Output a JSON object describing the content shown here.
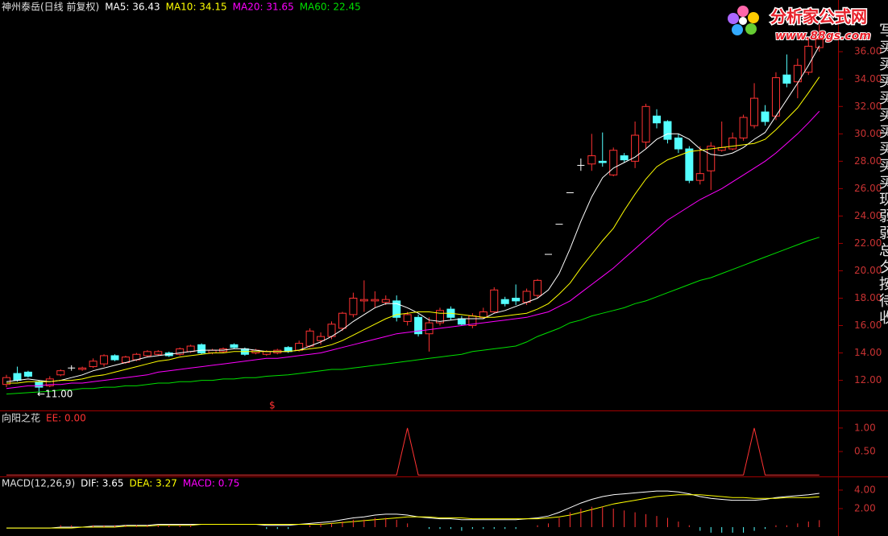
{
  "chart_data": [
    {
      "type": "candlestick",
      "title": "神州泰岳(日线 前复权)",
      "open": [
        11.7,
        12.5,
        12.6,
        11.9,
        11.6,
        12.4,
        12.9,
        12.8,
        13.0,
        13.2,
        13.8,
        13.3,
        13.5,
        13.8,
        13.9,
        14.0,
        13.9,
        14.1,
        14.6,
        14.0,
        14.1,
        14.6,
        14.3,
        14.0,
        13.9,
        14.0,
        14.4,
        14.2,
        14.5,
        14.9,
        15.2,
        15.8,
        16.8,
        17.8,
        17.8,
        17.7,
        17.8,
        16.3,
        16.6,
        15.4,
        16.2,
        17.2,
        16.5,
        16.0,
        16.6,
        17.0,
        17.9,
        18.0,
        17.7,
        18.2,
        21.2,
        23.4,
        25.7,
        27.7,
        27.8,
        28.0,
        27.0,
        28.4,
        28.0,
        29.4,
        31.3,
        30.9,
        29.7,
        28.9,
        26.6,
        27.3,
        28.8,
        28.9,
        29.7,
        30.6,
        31.6,
        31.3,
        34.3,
        33.8,
        34.5,
        36.3
      ],
      "high": [
        12.4,
        13.0,
        12.7,
        12.0,
        12.3,
        12.8,
        13.1,
        13.0,
        13.6,
        13.9,
        13.9,
        13.8,
        14.0,
        14.2,
        14.2,
        14.1,
        14.4,
        14.6,
        14.7,
        14.3,
        14.4,
        14.7,
        14.4,
        14.3,
        14.2,
        14.3,
        14.5,
        14.9,
        15.8,
        15.5,
        16.3,
        17.0,
        18.4,
        19.3,
        18.5,
        18.2,
        18.2,
        17.0,
        16.8,
        16.6,
        17.3,
        17.4,
        16.7,
        16.9,
        17.3,
        18.8,
        18.1,
        19.0,
        18.7,
        19.4,
        21.2,
        23.4,
        25.7,
        28.2,
        30.0,
        30.1,
        29.0,
        28.6,
        30.9,
        32.2,
        31.8,
        31.0,
        30.0,
        29.1,
        29.1,
        29.4,
        30.9,
        30.1,
        31.4,
        33.7,
        32.1,
        34.5,
        35.8,
        35.5,
        37.0,
        38.0
      ],
      "low": [
        11.5,
        11.9,
        12.2,
        11.0,
        11.5,
        12.3,
        12.7,
        12.7,
        12.9,
        13.0,
        13.4,
        13.2,
        13.4,
        13.7,
        13.8,
        13.7,
        13.8,
        14.0,
        13.9,
        13.9,
        14.0,
        14.3,
        13.8,
        13.9,
        13.8,
        13.9,
        14.0,
        14.1,
        14.4,
        14.6,
        15.0,
        15.6,
        16.6,
        17.0,
        17.3,
        17.5,
        16.3,
        16.0,
        15.2,
        14.1,
        16.0,
        16.4,
        16.0,
        15.8,
        16.5,
        16.9,
        17.4,
        17.5,
        17.5,
        18.0,
        21.2,
        23.4,
        25.7,
        27.3,
        27.3,
        27.6,
        26.9,
        27.9,
        27.5,
        28.9,
        30.4,
        29.3,
        28.6,
        26.4,
        26.3,
        25.9,
        28.7,
        28.8,
        29.5,
        30.4,
        30.6,
        31.0,
        33.4,
        32.6,
        34.3,
        36.0
      ],
      "close": [
        12.2,
        12.0,
        12.3,
        11.5,
        12.1,
        12.7,
        12.9,
        12.9,
        13.4,
        13.8,
        13.5,
        13.7,
        13.9,
        14.1,
        14.1,
        13.8,
        14.3,
        14.5,
        14.0,
        14.2,
        14.3,
        14.4,
        13.9,
        14.2,
        14.1,
        14.2,
        14.1,
        14.7,
        15.6,
        15.2,
        16.1,
        16.9,
        18.0,
        17.9,
        17.9,
        17.9,
        16.6,
        16.8,
        15.4,
        16.2,
        17.1,
        16.6,
        16.1,
        16.7,
        17.0,
        18.6,
        17.6,
        17.8,
        18.5,
        19.3,
        21.2,
        23.4,
        25.7,
        27.7,
        28.4,
        27.9,
        28.8,
        28.1,
        29.9,
        32.0,
        30.8,
        29.6,
        28.9,
        26.6,
        27.1,
        29.1,
        29.0,
        29.7,
        31.2,
        32.6,
        30.9,
        34.1,
        33.7,
        35.0,
        36.4,
        36.9
      ],
      "up_color": "#ff3232",
      "down_color": "#54ffff",
      "flat_color": "#ffffff",
      "series": [
        {
          "name": "MA5: 36.43",
          "color": "#ffffff",
          "values": [
            11.9,
            12.0,
            12.1,
            12.0,
            11.9,
            12.0,
            12.2,
            12.4,
            12.7,
            12.9,
            13.1,
            13.3,
            13.5,
            13.7,
            13.8,
            13.9,
            14.0,
            14.1,
            14.2,
            14.2,
            14.2,
            14.3,
            14.3,
            14.2,
            14.1,
            14.1,
            14.1,
            14.2,
            14.5,
            14.8,
            15.2,
            15.7,
            16.3,
            16.8,
            17.3,
            17.6,
            17.6,
            17.3,
            16.9,
            16.4,
            16.3,
            16.4,
            16.5,
            16.5,
            16.5,
            16.9,
            17.1,
            17.4,
            17.7,
            18.0,
            18.6,
            19.8,
            21.6,
            23.6,
            25.4,
            26.8,
            27.5,
            27.9,
            28.3,
            28.9,
            29.6,
            30.0,
            30.0,
            29.6,
            28.9,
            28.5,
            28.4,
            28.6,
            29.0,
            29.6,
            30.1,
            31.3,
            32.5,
            33.7,
            35.0,
            36.43
          ]
        },
        {
          "name": "MA10: 34.15",
          "color": "#ffff00",
          "values": [
            11.8,
            11.8,
            11.9,
            11.9,
            11.9,
            12.0,
            12.0,
            12.1,
            12.3,
            12.4,
            12.6,
            12.8,
            13.0,
            13.2,
            13.4,
            13.5,
            13.7,
            13.8,
            13.9,
            14.0,
            14.0,
            14.1,
            14.1,
            14.1,
            14.1,
            14.1,
            14.1,
            14.2,
            14.3,
            14.4,
            14.6,
            14.9,
            15.3,
            15.7,
            16.1,
            16.5,
            16.8,
            16.9,
            17.0,
            17.0,
            16.9,
            16.9,
            16.8,
            16.7,
            16.6,
            16.6,
            16.7,
            16.8,
            16.9,
            17.2,
            17.6,
            18.3,
            19.1,
            20.2,
            21.2,
            22.2,
            23.1,
            24.4,
            25.6,
            26.7,
            27.6,
            28.1,
            28.4,
            28.7,
            28.8,
            28.9,
            29.0,
            29.1,
            29.2,
            29.3,
            29.6,
            30.3,
            31.1,
            31.9,
            33.0,
            34.15
          ]
        },
        {
          "name": "MA20: 31.65",
          "color": "#ff00ff",
          "values": [
            11.4,
            11.5,
            11.6,
            11.6,
            11.7,
            11.7,
            11.8,
            11.8,
            11.9,
            12.0,
            12.1,
            12.2,
            12.3,
            12.4,
            12.6,
            12.7,
            12.8,
            12.9,
            13.0,
            13.1,
            13.2,
            13.3,
            13.4,
            13.5,
            13.6,
            13.6,
            13.7,
            13.8,
            13.9,
            14.0,
            14.2,
            14.4,
            14.6,
            14.8,
            15.0,
            15.2,
            15.4,
            15.5,
            15.6,
            15.7,
            15.8,
            15.9,
            16.0,
            16.1,
            16.2,
            16.3,
            16.4,
            16.5,
            16.6,
            16.8,
            17.0,
            17.4,
            17.8,
            18.4,
            19.0,
            19.6,
            20.2,
            20.9,
            21.6,
            22.3,
            23.0,
            23.7,
            24.2,
            24.7,
            25.2,
            25.6,
            26.0,
            26.5,
            27.0,
            27.5,
            28.0,
            28.6,
            29.3,
            30.0,
            30.8,
            31.65
          ]
        },
        {
          "name": "MA60: 22.45",
          "color": "#00e000",
          "values": [
            11.0,
            11.05,
            11.1,
            11.15,
            11.2,
            11.3,
            11.3,
            11.4,
            11.4,
            11.5,
            11.5,
            11.6,
            11.6,
            11.7,
            11.8,
            11.8,
            11.9,
            11.9,
            12.0,
            12.0,
            12.1,
            12.1,
            12.2,
            12.2,
            12.3,
            12.35,
            12.4,
            12.5,
            12.6,
            12.7,
            12.8,
            12.8,
            12.9,
            13.0,
            13.1,
            13.2,
            13.3,
            13.4,
            13.5,
            13.6,
            13.7,
            13.8,
            13.9,
            14.1,
            14.2,
            14.3,
            14.4,
            14.5,
            14.8,
            15.2,
            15.5,
            15.8,
            16.2,
            16.4,
            16.7,
            16.9,
            17.1,
            17.3,
            17.6,
            17.8,
            18.1,
            18.4,
            18.7,
            19.0,
            19.3,
            19.5,
            19.8,
            20.1,
            20.4,
            20.7,
            21.0,
            21.3,
            21.6,
            21.9,
            22.2,
            22.45
          ]
        }
      ],
      "ylim": [
        9.8,
        38.6
      ],
      "yticks": [
        {
          "value": 12,
          "label": "12.00"
        },
        {
          "value": 14,
          "label": "14.00"
        },
        {
          "value": 16,
          "label": "16.00"
        },
        {
          "value": 18,
          "label": "18.00"
        },
        {
          "value": 20,
          "label": "20.00"
        },
        {
          "value": 22,
          "label": "22.00"
        },
        {
          "value": 24,
          "label": "24.00"
        },
        {
          "value": 26,
          "label": "26.00"
        },
        {
          "value": 28,
          "label": "28.00"
        },
        {
          "value": 30,
          "label": "30.00"
        },
        {
          "value": 32,
          "label": "32.00"
        },
        {
          "value": 34,
          "label": "34.00"
        },
        {
          "value": 36,
          "label": "36.00"
        }
      ],
      "annotations": [
        {
          "text": "←11.00",
          "color": "#ffffff"
        },
        {
          "text": "$",
          "color": "#ff3232"
        }
      ]
    },
    {
      "type": "line",
      "title": "向阳之花",
      "series": [
        {
          "name": "EE: 0.00",
          "color": "#ff3232",
          "values": [
            0,
            0,
            0,
            0,
            0,
            0,
            0,
            0,
            0,
            0,
            0,
            0,
            0,
            0,
            0,
            0,
            0,
            0,
            0,
            0,
            0,
            0,
            0,
            0,
            0,
            0,
            0,
            0,
            0,
            0,
            0,
            0,
            0,
            0,
            0,
            0,
            0,
            1,
            0,
            0,
            0,
            0,
            0,
            0,
            0,
            0,
            0,
            0,
            0,
            0,
            0,
            0,
            0,
            0,
            0,
            0,
            0,
            0,
            0,
            0,
            0,
            0,
            0,
            0,
            0,
            0,
            0,
            0,
            0,
            1,
            0,
            0,
            0,
            0,
            0,
            0
          ]
        }
      ],
      "ylim": [
        -0.03,
        1.34
      ],
      "yticks": [
        {
          "value": 0.5,
          "label": "0.50"
        },
        {
          "value": 1,
          "label": "1.00"
        }
      ]
    },
    {
      "type": "macd",
      "title": "MACD(12,26,9)",
      "series": [
        {
          "name": "DIF: 3.65",
          "color": "#ffffff",
          "values": [
            -0.1,
            -0.1,
            -0.1,
            -0.1,
            -0.1,
            0.0,
            0.0,
            0.0,
            0.1,
            0.1,
            0.1,
            0.2,
            0.2,
            0.2,
            0.3,
            0.3,
            0.3,
            0.3,
            0.3,
            0.3,
            0.3,
            0.3,
            0.3,
            0.3,
            0.2,
            0.2,
            0.2,
            0.3,
            0.4,
            0.5,
            0.6,
            0.8,
            1.0,
            1.1,
            1.3,
            1.4,
            1.4,
            1.3,
            1.1,
            1.0,
            0.9,
            0.9,
            0.8,
            0.8,
            0.8,
            0.8,
            0.8,
            0.8,
            0.9,
            1.0,
            1.2,
            1.6,
            2.1,
            2.6,
            3.0,
            3.3,
            3.5,
            3.6,
            3.7,
            3.8,
            3.9,
            3.9,
            3.8,
            3.6,
            3.3,
            3.1,
            3.0,
            2.9,
            2.9,
            2.9,
            3.0,
            3.2,
            3.3,
            3.4,
            3.5,
            3.65
          ]
        },
        {
          "name": "DEA: 3.27",
          "color": "#ffff00",
          "values": [
            -0.1,
            -0.1,
            -0.1,
            -0.1,
            -0.1,
            -0.1,
            -0.1,
            0.0,
            0.0,
            0.0,
            0.0,
            0.1,
            0.1,
            0.1,
            0.2,
            0.2,
            0.2,
            0.2,
            0.3,
            0.3,
            0.3,
            0.3,
            0.3,
            0.3,
            0.3,
            0.3,
            0.3,
            0.3,
            0.3,
            0.3,
            0.4,
            0.5,
            0.6,
            0.7,
            0.8,
            0.9,
            1.0,
            1.1,
            1.1,
            1.1,
            1.0,
            1.0,
            1.0,
            0.9,
            0.9,
            0.9,
            0.9,
            0.9,
            0.9,
            0.9,
            1.0,
            1.1,
            1.3,
            1.6,
            1.9,
            2.2,
            2.5,
            2.7,
            2.9,
            3.1,
            3.3,
            3.4,
            3.5,
            3.5,
            3.5,
            3.4,
            3.3,
            3.2,
            3.2,
            3.1,
            3.1,
            3.1,
            3.2,
            3.2,
            3.2,
            3.27
          ]
        },
        {
          "name": "MACD: 0.75",
          "color": "#ff00ff",
          "kind": "bar",
          "up_color": "#ff3232",
          "down_color": "#54ffff",
          "values": [
            0,
            0,
            0,
            0,
            0,
            0.2,
            0.2,
            0,
            0.2,
            0.2,
            0.2,
            0.2,
            0.2,
            0.2,
            0.2,
            0.2,
            0.2,
            0.2,
            0,
            0,
            0,
            0,
            0,
            0,
            -0.2,
            -0.2,
            -0.2,
            0,
            0.2,
            0.4,
            0.4,
            0.6,
            0.8,
            0.8,
            1.0,
            1.0,
            0.8,
            0.4,
            0,
            -0.2,
            -0.2,
            -0.2,
            -0.4,
            -0.2,
            -0.2,
            -0.2,
            -0.2,
            -0.2,
            0,
            0.2,
            0.4,
            1.0,
            1.6,
            2.0,
            2.2,
            2.2,
            2.0,
            1.8,
            1.6,
            1.4,
            1.2,
            1.0,
            0.6,
            0.2,
            -0.4,
            -0.6,
            -0.6,
            -0.6,
            -0.6,
            -0.4,
            -0.2,
            0.2,
            0.2,
            0.4,
            0.6,
            0.75
          ]
        }
      ],
      "ylim": [
        -0.96,
        5.3
      ],
      "yticks": [
        {
          "value": 2,
          "label": "2.00"
        },
        {
          "value": 4,
          "label": "4.00"
        }
      ]
    }
  ],
  "watermark": {
    "title": "分析家公式网",
    "url": "www.88gs.com"
  },
  "side_text": "写买买买买买买买买买现弱弱总夕按待收"
}
